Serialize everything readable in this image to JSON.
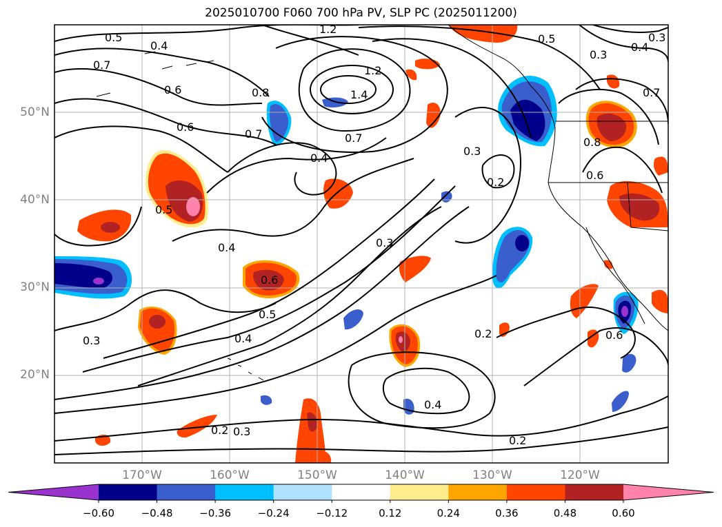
{
  "title": "2025010700 F060 700 hPa PV, SLP PC (2025011200)",
  "latitude_labels": [
    "50°N",
    "40°N",
    "30°N",
    "20°N"
  ],
  "longitude_labels": [
    "170°W",
    "160°W",
    "150°W",
    "140°W",
    "130°W",
    "120°W"
  ],
  "colorbar": {
    "ticks": [
      "−0.60",
      "−0.48",
      "−0.36",
      "−0.24",
      "−0.12",
      "0.12",
      "0.24",
      "0.36",
      "0.48",
      "0.60"
    ],
    "colors": [
      "#9a32cd",
      "#00008b",
      "#3a5fcd",
      "#00bfff",
      "#b0e2ff",
      "#ffffff",
      "#ffec8b",
      "#ffa500",
      "#ff4500",
      "#b22222",
      "#ff82ab"
    ]
  },
  "contour_labels": [
    "1.2",
    "1.4",
    "1.2",
    "0.5",
    "0.4",
    "0.7",
    "0.6",
    "0.8",
    "0.6",
    "0.7",
    "0.7",
    "0.4",
    "0.5",
    "0.4",
    "0.6",
    "0.5",
    "0.4",
    "0.3",
    "0.3",
    "0.3",
    "0.2",
    "0.3",
    "0.2",
    "0.2",
    "0.4",
    "0.2",
    "0.3",
    "0.4",
    "0.5",
    "0.8",
    "0.6",
    "0.7",
    "0.6",
    "0.3"
  ],
  "chart_data": {
    "type": "contour",
    "title": "2025010700 F060 700 hPa PV, SLP PC (2025011200)",
    "lat_range": [
      10,
      60
    ],
    "lon_range": [
      -180,
      -110
    ],
    "shading_levels": [
      -0.6,
      -0.48,
      -0.36,
      -0.24,
      -0.12,
      0.12,
      0.24,
      0.36,
      0.48,
      0.6
    ],
    "contour_values": [
      0.2,
      0.3,
      0.4,
      0.5,
      0.6,
      0.7,
      0.8,
      1.2,
      1.4
    ]
  }
}
